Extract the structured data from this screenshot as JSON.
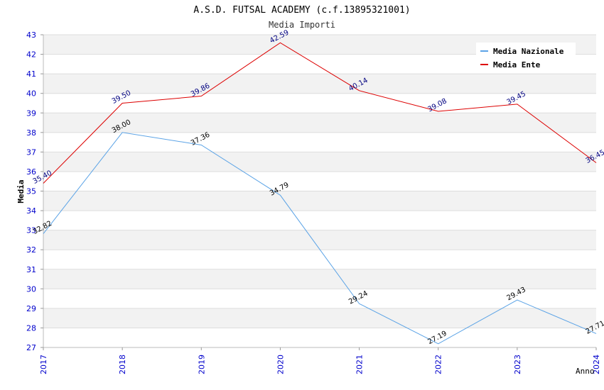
{
  "chart_data": {
    "type": "line",
    "title": "A.S.D. FUTSAL ACADEMY (c.f.13895321001)",
    "subtitle": "Media Importi",
    "xlabel": "Anno",
    "ylabel": "Media",
    "categories": [
      "2017",
      "2018",
      "2019",
      "2020",
      "2021",
      "2022",
      "2023",
      "2024"
    ],
    "ylim": [
      27,
      43
    ],
    "yticks": [
      "27",
      "28",
      "29",
      "30",
      "31",
      "32",
      "33",
      "34",
      "35",
      "36",
      "37",
      "38",
      "39",
      "40",
      "41",
      "42",
      "43"
    ],
    "legend_position": "top-right",
    "series": [
      {
        "name": "Media Nazionale",
        "color": "#5ba3e6",
        "values": [
          32.82,
          38.0,
          37.36,
          34.79,
          29.24,
          27.19,
          29.43,
          27.71
        ],
        "labels": [
          "32.82",
          "38.00",
          "37.36",
          "34.79",
          "29.24",
          "27.19",
          "29.43",
          "27.71"
        ]
      },
      {
        "name": "Media Ente",
        "color": "#dd0000",
        "values": [
          35.4,
          39.5,
          39.86,
          42.59,
          40.14,
          39.08,
          39.45,
          36.45
        ],
        "labels": [
          "35.40",
          "39.50",
          "39.86",
          "42.59",
          "40.14",
          "39.08",
          "39.45",
          "36.45"
        ]
      }
    ]
  }
}
